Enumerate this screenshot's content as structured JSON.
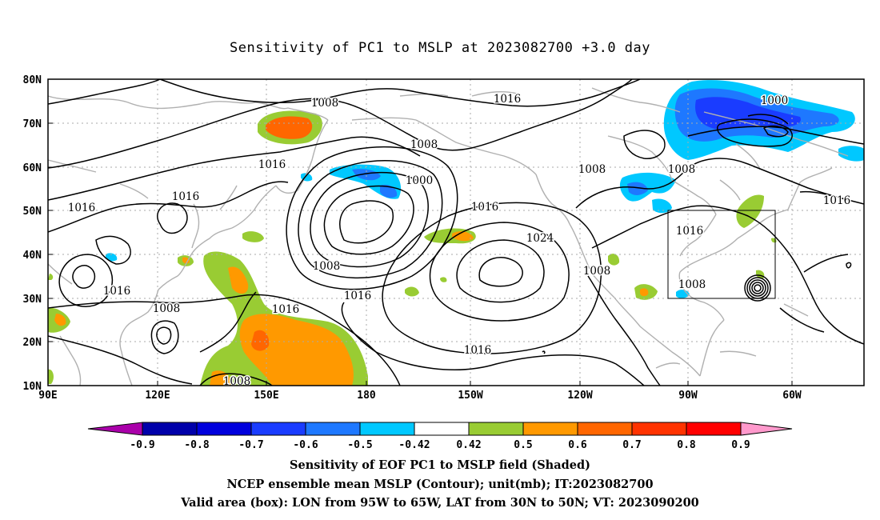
{
  "title": "Sensitivity of PC1 to MSLP at 2023082700 +3.0 day",
  "lat_labels": [
    "80N",
    "70N",
    "60N",
    "50N",
    "40N",
    "30N",
    "20N",
    "10N"
  ],
  "lon_labels": [
    "90E",
    "120E",
    "150E",
    "180",
    "150W",
    "120W",
    "90W",
    "60W"
  ],
  "contour_labels": [
    {
      "text": "1008"
    },
    {
      "text": "1016"
    },
    {
      "text": "1000"
    },
    {
      "text": "1008"
    },
    {
      "text": "1008"
    },
    {
      "text": "1016"
    },
    {
      "text": "1016"
    },
    {
      "text": "1016"
    },
    {
      "text": "1016"
    },
    {
      "text": "1008"
    },
    {
      "text": "1000"
    },
    {
      "text": "1008"
    },
    {
      "text": "1016"
    },
    {
      "text": "1024"
    },
    {
      "text": "1016"
    },
    {
      "text": "1008"
    },
    {
      "text": "1008"
    },
    {
      "text": "1016"
    },
    {
      "text": "1016"
    },
    {
      "text": "1016"
    },
    {
      "text": "1008"
    },
    {
      "text": "1016"
    },
    {
      "text": "1008"
    },
    {
      "text": "1016"
    }
  ],
  "colorbar": {
    "labels": [
      "-0.9",
      "-0.8",
      "-0.7",
      "-0.6",
      "-0.5",
      "-0.42",
      "0.42",
      "0.5",
      "0.6",
      "0.7",
      "0.8",
      "0.9"
    ],
    "colors": [
      "#aa00aa",
      "#0000aa",
      "#0000dd",
      "#1a3cff",
      "#1e78ff",
      "#00c8ff",
      "#ffffff",
      "#99cc33",
      "#ff9900",
      "#ff6600",
      "#ff3300",
      "#ff0000",
      "#ff99cc"
    ]
  },
  "valid_box": {
    "lon_west": "95W",
    "lon_east": "65W",
    "lat_south": "30N",
    "lat_north": "50N"
  },
  "captions": {
    "line1": "Sensitivity of EOF PC1 to MSLP field (Shaded)",
    "line2": "NCEP ensemble mean MSLP (Contour); unit(mb); IT:2023082700",
    "line3": "Valid area (box): LON from 95W to 65W, LAT from 30N to 50N; VT: 2023090200"
  }
}
